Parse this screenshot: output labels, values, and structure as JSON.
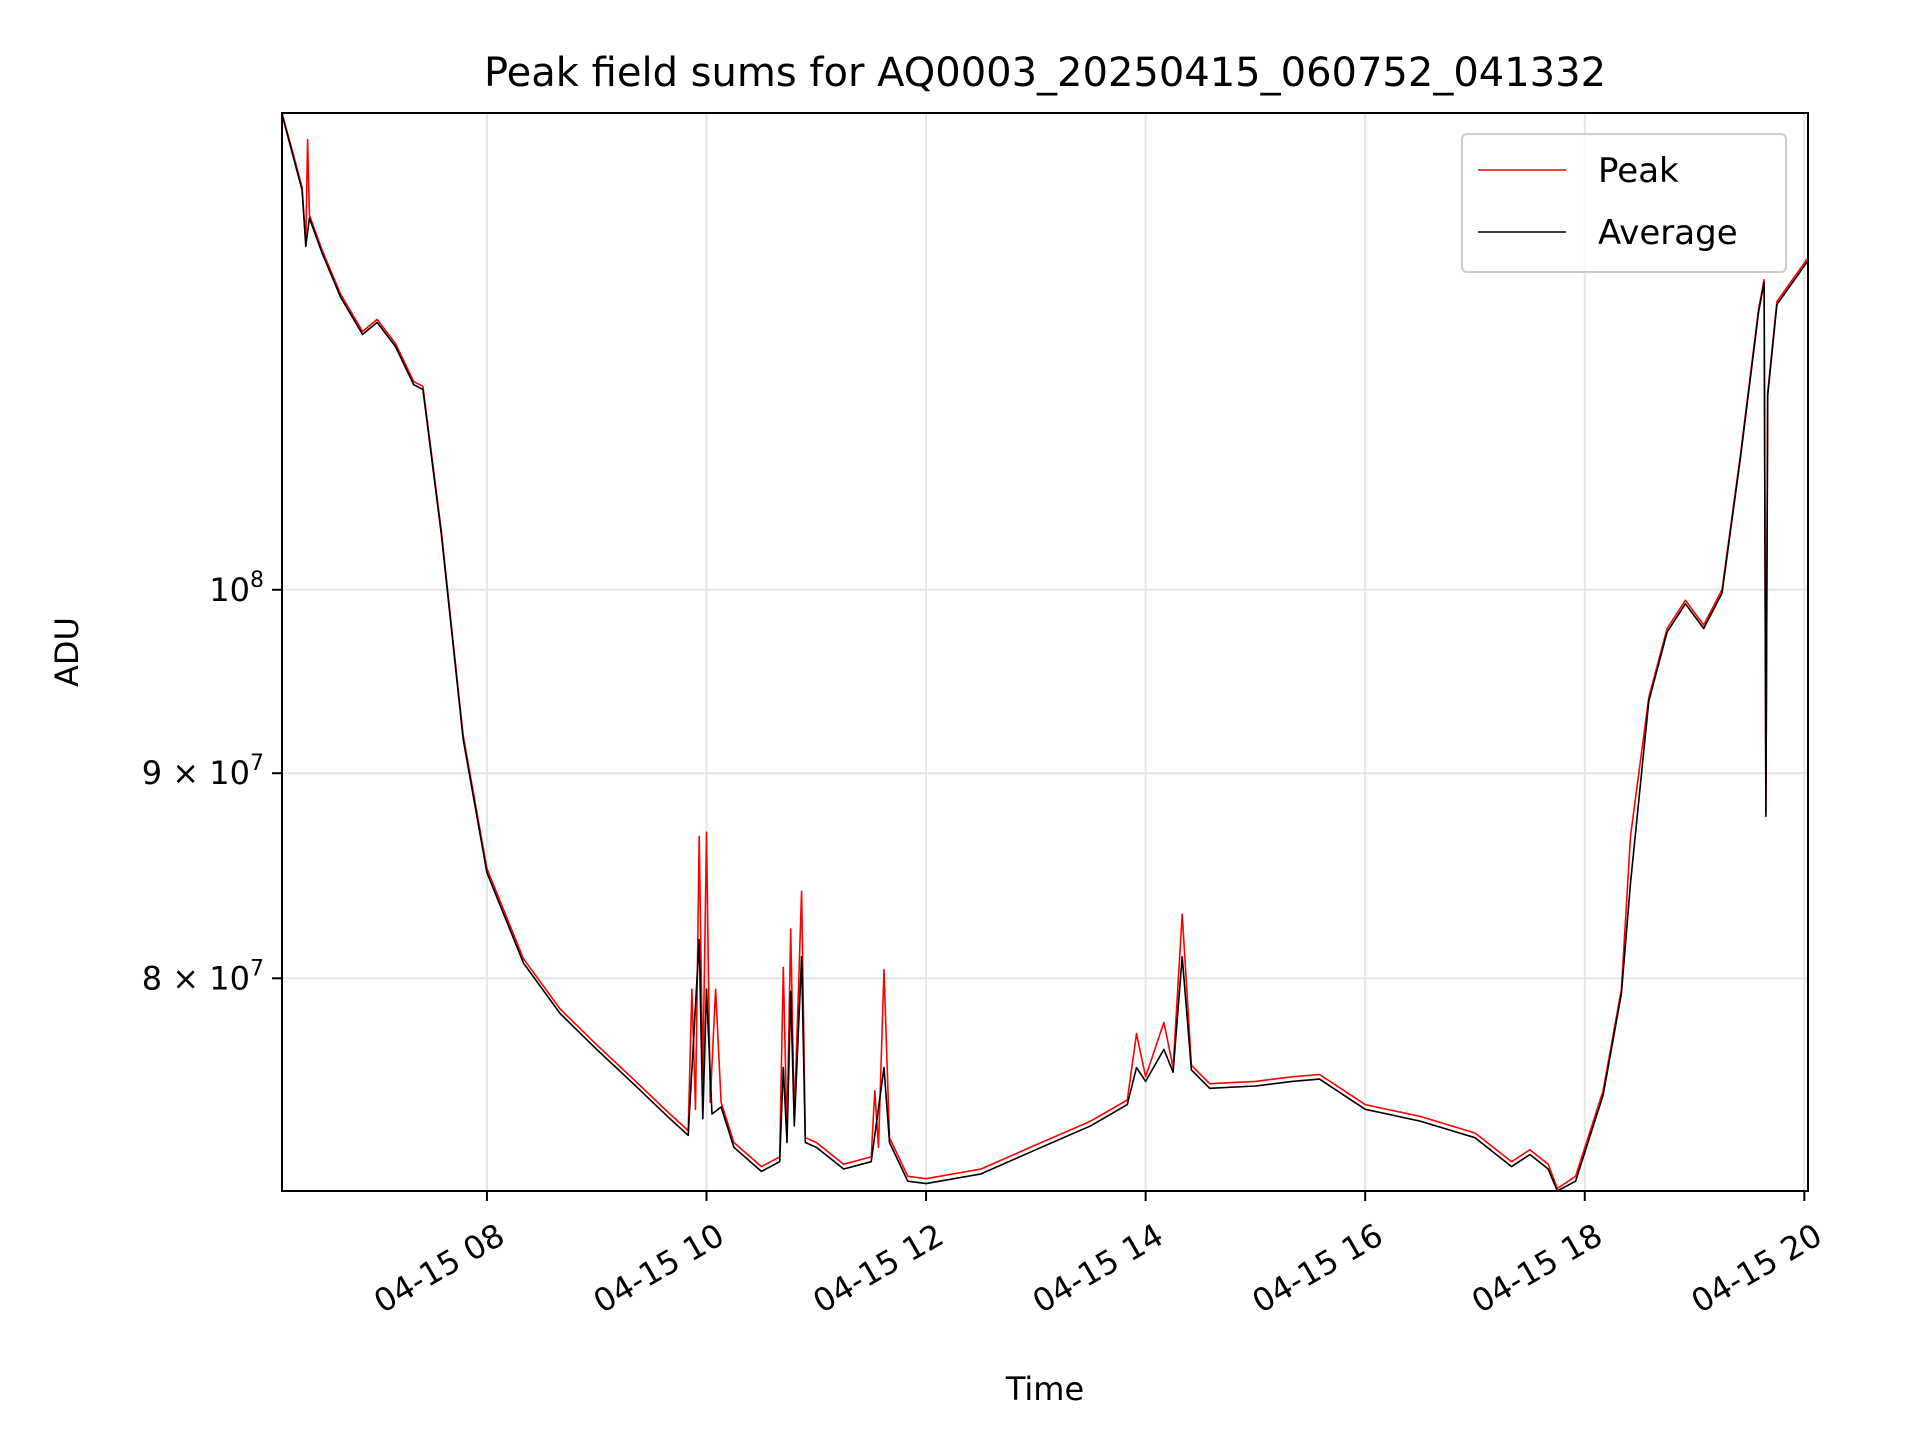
{
  "chart_data": {
    "type": "line",
    "title": "Peak field sums for AQ0003_20250415_060752_041332",
    "xlabel": "Time",
    "ylabel": "ADU",
    "y_scale": "log",
    "grid": true,
    "legend_placement": "top-right",
    "xlim": [
      "2025-04-15 06:08",
      "2025-04-15 20:02"
    ],
    "ylim": [
      70800000,
      131500000
    ],
    "x_ticks": [
      {
        "value": "2025-04-15 08:00",
        "label": "04-15 08"
      },
      {
        "value": "2025-04-15 10:00",
        "label": "04-15 10"
      },
      {
        "value": "2025-04-15 12:00",
        "label": "04-15 12"
      },
      {
        "value": "2025-04-15 14:00",
        "label": "04-15 14"
      },
      {
        "value": "2025-04-15 16:00",
        "label": "04-15 16"
      },
      {
        "value": "2025-04-15 18:00",
        "label": "04-15 18"
      },
      {
        "value": "2025-04-15 20:00",
        "label": "04-15 20"
      }
    ],
    "y_ticks": [
      {
        "value": 80000000,
        "label_base": "8 × 10",
        "label_exp": "7"
      },
      {
        "value": 90000000,
        "label_base": "9 × 10",
        "label_exp": "7"
      },
      {
        "value": 100000000,
        "label_base": "10",
        "label_exp": "8"
      }
    ],
    "series": [
      {
        "name": "Peak",
        "color": "#ff0000",
        "points": [
          [
            "2025-04-15 06:08",
            131500000
          ],
          [
            "2025-04-15 06:14",
            128500000
          ],
          [
            "2025-04-15 06:19",
            126000000
          ],
          [
            "2025-04-15 06:21",
            122000000
          ],
          [
            "2025-04-15 06:22",
            129500000
          ],
          [
            "2025-04-15 06:23",
            124000000
          ],
          [
            "2025-04-15 06:30",
            121500000
          ],
          [
            "2025-04-15 06:40",
            118500000
          ],
          [
            "2025-04-15 06:52",
            116000000
          ],
          [
            "2025-04-15 07:00",
            116800000
          ],
          [
            "2025-04-15 07:10",
            115200000
          ],
          [
            "2025-04-15 07:20",
            112700000
          ],
          [
            "2025-04-15 07:25",
            112400000
          ],
          [
            "2025-04-15 07:35",
            103500000
          ],
          [
            "2025-04-15 07:47",
            92000000
          ],
          [
            "2025-04-15 08:00",
            85200000
          ],
          [
            "2025-04-15 08:20",
            80900000
          ],
          [
            "2025-04-15 08:40",
            78600000
          ],
          [
            "2025-04-15 09:00",
            77000000
          ],
          [
            "2025-04-15 09:20",
            75500000
          ],
          [
            "2025-04-15 09:40",
            74000000
          ],
          [
            "2025-04-15 09:50",
            73300000
          ],
          [
            "2025-04-15 09:52",
            79500000
          ],
          [
            "2025-04-15 09:54",
            74200000
          ],
          [
            "2025-04-15 09:56",
            86800000
          ],
          [
            "2025-04-15 09:58",
            75500000
          ],
          [
            "2025-04-15 10:00",
            87000000
          ],
          [
            "2025-04-15 10:02",
            74500000
          ],
          [
            "2025-04-15 10:05",
            79500000
          ],
          [
            "2025-04-15 10:08",
            74500000
          ],
          [
            "2025-04-15 10:15",
            72800000
          ],
          [
            "2025-04-15 10:30",
            71800000
          ],
          [
            "2025-04-15 10:40",
            72200000
          ],
          [
            "2025-04-15 10:42",
            80500000
          ],
          [
            "2025-04-15 10:44",
            73200000
          ],
          [
            "2025-04-15 10:46",
            82300000
          ],
          [
            "2025-04-15 10:48",
            73800000
          ],
          [
            "2025-04-15 10:52",
            84100000
          ],
          [
            "2025-04-15 10:54",
            73000000
          ],
          [
            "2025-04-15 11:00",
            72800000
          ],
          [
            "2025-04-15 11:15",
            71900000
          ],
          [
            "2025-04-15 11:30",
            72200000
          ],
          [
            "2025-04-15 11:32",
            75000000
          ],
          [
            "2025-04-15 11:34",
            72600000
          ],
          [
            "2025-04-15 11:37",
            80400000
          ],
          [
            "2025-04-15 11:40",
            73000000
          ],
          [
            "2025-04-15 11:50",
            71400000
          ],
          [
            "2025-04-15 12:00",
            71300000
          ],
          [
            "2025-04-15 12:30",
            71700000
          ],
          [
            "2025-04-15 13:00",
            72700000
          ],
          [
            "2025-04-15 13:30",
            73700000
          ],
          [
            "2025-04-15 13:50",
            74600000
          ],
          [
            "2025-04-15 13:55",
            77500000
          ],
          [
            "2025-04-15 14:00",
            75600000
          ],
          [
            "2025-04-15 14:10",
            78000000
          ],
          [
            "2025-04-15 14:15",
            76000000
          ],
          [
            "2025-04-15 14:20",
            83000000
          ],
          [
            "2025-04-15 14:25",
            76100000
          ],
          [
            "2025-04-15 14:35",
            75300000
          ],
          [
            "2025-04-15 15:00",
            75400000
          ],
          [
            "2025-04-15 15:20",
            75600000
          ],
          [
            "2025-04-15 15:35",
            75700000
          ],
          [
            "2025-04-15 16:00",
            74400000
          ],
          [
            "2025-04-15 16:30",
            73900000
          ],
          [
            "2025-04-15 17:00",
            73200000
          ],
          [
            "2025-04-15 17:20",
            72000000
          ],
          [
            "2025-04-15 17:30",
            72500000
          ],
          [
            "2025-04-15 17:40",
            71900000
          ],
          [
            "2025-04-15 17:45",
            70900000
          ],
          [
            "2025-04-15 17:55",
            71400000
          ],
          [
            "2025-04-15 18:10",
            75000000
          ],
          [
            "2025-04-15 18:20",
            79500000
          ],
          [
            "2025-04-15 18:25",
            86800000
          ],
          [
            "2025-04-15 18:35",
            94000000
          ],
          [
            "2025-04-15 18:45",
            97800000
          ],
          [
            "2025-04-15 18:55",
            99400000
          ],
          [
            "2025-04-15 19:05",
            98000000
          ],
          [
            "2025-04-15 19:15",
            100000000
          ],
          [
            "2025-04-15 19:25",
            108000000
          ],
          [
            "2025-04-15 19:35",
            117500000
          ],
          [
            "2025-04-15 19:38",
            119500000
          ],
          [
            "2025-04-15 19:39",
            88000000
          ],
          [
            "2025-04-15 19:40",
            112000000
          ],
          [
            "2025-04-15 19:45",
            118000000
          ],
          [
            "2025-04-15 20:02",
            121000000
          ]
        ]
      },
      {
        "name": "Average",
        "color": "#000000",
        "points": [
          [
            "2025-04-15 06:08",
            131400000
          ],
          [
            "2025-04-15 06:14",
            128300000
          ],
          [
            "2025-04-15 06:19",
            125800000
          ],
          [
            "2025-04-15 06:21",
            121800000
          ],
          [
            "2025-04-15 06:23",
            123800000
          ],
          [
            "2025-04-15 06:30",
            121300000
          ],
          [
            "2025-04-15 06:40",
            118300000
          ],
          [
            "2025-04-15 06:52",
            115800000
          ],
          [
            "2025-04-15 07:00",
            116600000
          ],
          [
            "2025-04-15 07:10",
            115000000
          ],
          [
            "2025-04-15 07:20",
            112500000
          ],
          [
            "2025-04-15 07:25",
            112200000
          ],
          [
            "2025-04-15 07:35",
            103300000
          ],
          [
            "2025-04-15 07:47",
            91800000
          ],
          [
            "2025-04-15 08:00",
            85000000
          ],
          [
            "2025-04-15 08:20",
            80700000
          ],
          [
            "2025-04-15 08:40",
            78400000
          ],
          [
            "2025-04-15 09:00",
            76800000
          ],
          [
            "2025-04-15 09:20",
            75300000
          ],
          [
            "2025-04-15 09:40",
            73800000
          ],
          [
            "2025-04-15 09:50",
            73100000
          ],
          [
            "2025-04-15 09:56",
            81800000
          ],
          [
            "2025-04-15 09:58",
            73800000
          ],
          [
            "2025-04-15 10:00",
            79500000
          ],
          [
            "2025-04-15 10:03",
            74000000
          ],
          [
            "2025-04-15 10:08",
            74300000
          ],
          [
            "2025-04-15 10:15",
            72600000
          ],
          [
            "2025-04-15 10:30",
            71600000
          ],
          [
            "2025-04-15 10:40",
            72000000
          ],
          [
            "2025-04-15 10:42",
            76000000
          ],
          [
            "2025-04-15 10:44",
            72800000
          ],
          [
            "2025-04-15 10:46",
            79400000
          ],
          [
            "2025-04-15 10:48",
            73500000
          ],
          [
            "2025-04-15 10:52",
            81000000
          ],
          [
            "2025-04-15 10:54",
            72800000
          ],
          [
            "2025-04-15 11:00",
            72600000
          ],
          [
            "2025-04-15 11:15",
            71700000
          ],
          [
            "2025-04-15 11:30",
            72000000
          ],
          [
            "2025-04-15 11:37",
            76000000
          ],
          [
            "2025-04-15 11:40",
            72800000
          ],
          [
            "2025-04-15 11:50",
            71200000
          ],
          [
            "2025-04-15 12:00",
            71100000
          ],
          [
            "2025-04-15 12:30",
            71500000
          ],
          [
            "2025-04-15 13:00",
            72500000
          ],
          [
            "2025-04-15 13:30",
            73500000
          ],
          [
            "2025-04-15 13:50",
            74400000
          ],
          [
            "2025-04-15 13:55",
            76000000
          ],
          [
            "2025-04-15 14:00",
            75400000
          ],
          [
            "2025-04-15 14:10",
            76800000
          ],
          [
            "2025-04-15 14:15",
            75800000
          ],
          [
            "2025-04-15 14:20",
            81000000
          ],
          [
            "2025-04-15 14:25",
            75900000
          ],
          [
            "2025-04-15 14:35",
            75100000
          ],
          [
            "2025-04-15 15:00",
            75200000
          ],
          [
            "2025-04-15 15:20",
            75400000
          ],
          [
            "2025-04-15 15:35",
            75500000
          ],
          [
            "2025-04-15 16:00",
            74200000
          ],
          [
            "2025-04-15 16:30",
            73700000
          ],
          [
            "2025-04-15 17:00",
            73000000
          ],
          [
            "2025-04-15 17:20",
            71800000
          ],
          [
            "2025-04-15 17:30",
            72300000
          ],
          [
            "2025-04-15 17:40",
            71700000
          ],
          [
            "2025-04-15 17:45",
            70800000
          ],
          [
            "2025-04-15 17:55",
            71200000
          ],
          [
            "2025-04-15 18:10",
            74800000
          ],
          [
            "2025-04-15 18:20",
            79300000
          ],
          [
            "2025-04-15 18:25",
            84500000
          ],
          [
            "2025-04-15 18:35",
            93800000
          ],
          [
            "2025-04-15 18:45",
            97600000
          ],
          [
            "2025-04-15 18:55",
            99200000
          ],
          [
            "2025-04-15 19:05",
            97800000
          ],
          [
            "2025-04-15 19:15",
            99800000
          ],
          [
            "2025-04-15 19:25",
            107800000
          ],
          [
            "2025-04-15 19:35",
            117300000
          ],
          [
            "2025-04-15 19:38",
            119300000
          ],
          [
            "2025-04-15 19:39",
            87800000
          ],
          [
            "2025-04-15 19:40",
            111800000
          ],
          [
            "2025-04-15 19:45",
            117800000
          ],
          [
            "2025-04-15 20:02",
            120800000
          ]
        ]
      }
    ]
  }
}
